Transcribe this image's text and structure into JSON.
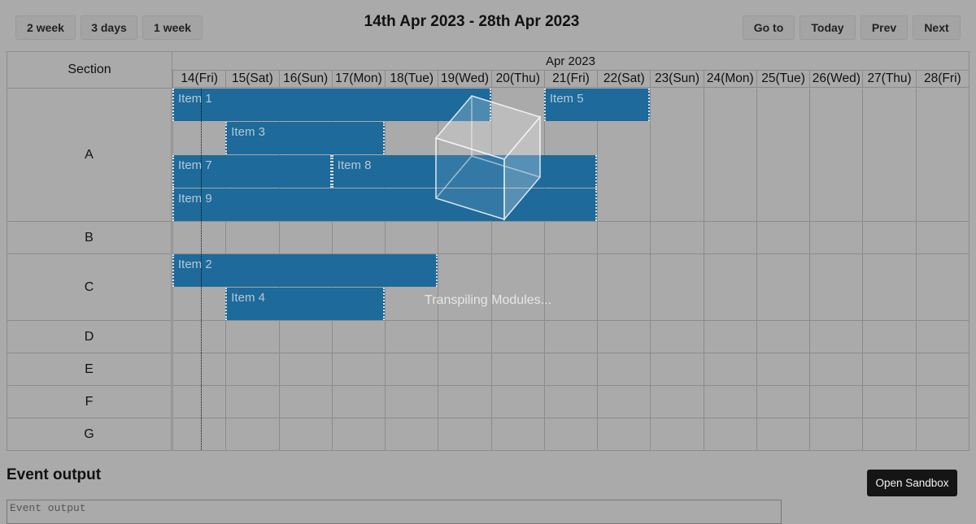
{
  "toolbar": {
    "left_buttons": [
      "2 week",
      "3 days",
      "1 week"
    ],
    "title": "14th Apr 2023 - 28th Apr 2023",
    "right_buttons": [
      "Go to",
      "Today",
      "Prev",
      "Next"
    ]
  },
  "scheduler": {
    "section_header": "Section",
    "month_header": "Apr 2023",
    "days": [
      "14(Fri)",
      "15(Sat)",
      "16(Sun)",
      "17(Mon)",
      "18(Tue)",
      "19(Wed)",
      "20(Thu)",
      "21(Fri)",
      "22(Sat)",
      "23(Sun)",
      "24(Mon)",
      "25(Tue)",
      "26(Wed)",
      "27(Thu)",
      "28(Fri)"
    ],
    "sections": [
      {
        "label": "A",
        "lanes": 4
      },
      {
        "label": "B",
        "lanes": 1
      },
      {
        "label": "C",
        "lanes": 2
      },
      {
        "label": "D",
        "lanes": 1
      },
      {
        "label": "E",
        "lanes": 1
      },
      {
        "label": "F",
        "lanes": 1
      },
      {
        "label": "G",
        "lanes": 1
      }
    ],
    "events": [
      {
        "title": "Item 1",
        "section": 0,
        "lane": 0,
        "start_day": 0,
        "end_day": 6
      },
      {
        "title": "Item 5",
        "section": 0,
        "lane": 0,
        "start_day": 7,
        "end_day": 9
      },
      {
        "title": "Item 3",
        "section": 0,
        "lane": 1,
        "start_day": 1,
        "end_day": 4
      },
      {
        "title": "Item 7",
        "section": 0,
        "lane": 2,
        "start_day": 0,
        "end_day": 3
      },
      {
        "title": "Item 8",
        "section": 0,
        "lane": 2,
        "start_day": 3,
        "end_day": 8
      },
      {
        "title": "Item 9",
        "section": 0,
        "lane": 3,
        "start_day": 0,
        "end_day": 8
      },
      {
        "title": "Item 2",
        "section": 2,
        "lane": 0,
        "start_day": 0,
        "end_day": 5
      },
      {
        "title": "Item 4",
        "section": 2,
        "lane": 1,
        "start_day": 1,
        "end_day": 4
      }
    ]
  },
  "overlay": {
    "loading_text": "Transpiling Modules...",
    "icon": "cube-icon"
  },
  "event_output": {
    "title": "Event output",
    "placeholder": "Event output"
  },
  "sandbox": {
    "label": "Open Sandbox"
  }
}
